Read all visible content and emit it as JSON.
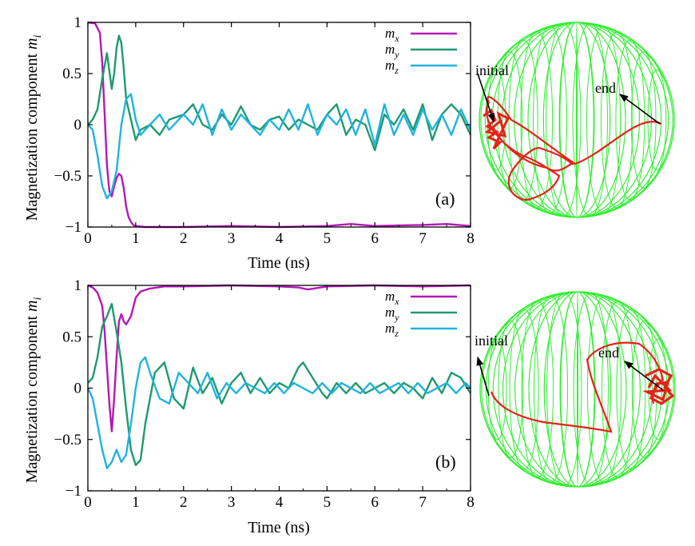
{
  "colors": {
    "mx": "#b417b8",
    "my": "#1e9a6e",
    "mz": "#1fb3e0",
    "sphere": "#33ee33",
    "trajectory": "#e8201a",
    "axis": "#000000"
  },
  "chart_data": [
    {
      "type": "line",
      "panel_label": "(a)",
      "xlabel": "Time (ns)",
      "ylabel": "Magnetization component m_i",
      "ylabel_main": "Magnetization component ",
      "ylabel_var": "m",
      "ylabel_sub": "i",
      "xlim": [
        0,
        8
      ],
      "ylim": [
        -1,
        1
      ],
      "xticks": [
        0,
        1,
        2,
        3,
        4,
        5,
        6,
        7,
        8
      ],
      "yticks": [
        {
          "value": 1,
          "label": "1"
        },
        {
          "value": 0.5,
          "label": "0.5"
        },
        {
          "value": 0,
          "label": "0"
        },
        {
          "value": -0.5,
          "label": "−0.5"
        },
        {
          "value": -1,
          "label": "−1"
        }
      ],
      "legend_position": "top-right",
      "series": [
        {
          "name": "m_x",
          "base": "m",
          "sub": "x",
          "color_key": "mx",
          "x": [
            0,
            0.15,
            0.25,
            0.3,
            0.35,
            0.4,
            0.45,
            0.5,
            0.55,
            0.6,
            0.65,
            0.7,
            0.75,
            0.8,
            0.85,
            0.9,
            0.95,
            1.0,
            1.2,
            2,
            3,
            4,
            5,
            5.5,
            6,
            7,
            7.5,
            8
          ],
          "y": [
            1.0,
            0.99,
            0.9,
            0.6,
            0.1,
            -0.4,
            -0.65,
            -0.7,
            -0.6,
            -0.52,
            -0.48,
            -0.5,
            -0.62,
            -0.8,
            -0.9,
            -0.95,
            -0.98,
            -0.99,
            -1.0,
            -1.0,
            -0.99,
            -1.0,
            -0.99,
            -0.97,
            -0.99,
            -0.98,
            -0.97,
            -0.99
          ]
        },
        {
          "name": "m_y",
          "base": "m",
          "sub": "y",
          "color_key": "my",
          "x": [
            0,
            0.1,
            0.2,
            0.3,
            0.4,
            0.5,
            0.55,
            0.6,
            0.65,
            0.7,
            0.75,
            0.8,
            0.9,
            1.0,
            1.1,
            1.3,
            1.5,
            1.7,
            2.0,
            2.2,
            2.4,
            2.6,
            2.8,
            3.0,
            3.2,
            3.4,
            3.6,
            3.8,
            4.0,
            4.2,
            4.4,
            4.6,
            4.8,
            5.0,
            5.2,
            5.4,
            5.6,
            5.8,
            6.0,
            6.2,
            6.4,
            6.6,
            6.8,
            7.0,
            7.2,
            7.4,
            7.6,
            7.8,
            8.0
          ],
          "y": [
            0.0,
            0.05,
            0.15,
            0.45,
            0.7,
            0.35,
            0.5,
            0.75,
            0.87,
            0.8,
            0.55,
            0.25,
            0.05,
            -0.15,
            -0.05,
            0.0,
            -0.1,
            0.05,
            0.1,
            0.2,
            0.0,
            -0.05,
            0.1,
            0.0,
            0.18,
            0.0,
            -0.05,
            0.05,
            0.08,
            -0.05,
            0.05,
            0.0,
            -0.05,
            0.1,
            0.2,
            -0.1,
            0.05,
            0.0,
            -0.25,
            0.1,
            0.0,
            0.15,
            -0.05,
            0.2,
            -0.15,
            0.1,
            0.2,
            0.1,
            -0.1
          ]
        },
        {
          "name": "m_z",
          "base": "m",
          "sub": "z",
          "color_key": "mz",
          "x": [
            0,
            0.1,
            0.2,
            0.3,
            0.4,
            0.5,
            0.6,
            0.7,
            0.8,
            0.9,
            1.0,
            1.1,
            1.3,
            1.5,
            1.7,
            2.0,
            2.2,
            2.4,
            2.6,
            2.8,
            3.0,
            3.2,
            3.4,
            3.6,
            3.8,
            4.0,
            4.2,
            4.4,
            4.6,
            4.8,
            5.0,
            5.2,
            5.4,
            5.6,
            5.8,
            6.0,
            6.2,
            6.4,
            6.6,
            6.8,
            7.0,
            7.2,
            7.4,
            7.6,
            7.8,
            8.0
          ],
          "y": [
            0.0,
            -0.05,
            -0.3,
            -0.6,
            -0.72,
            -0.65,
            -0.45,
            0.0,
            0.25,
            0.3,
            0.05,
            -0.1,
            0.0,
            0.1,
            -0.05,
            0.1,
            0.0,
            0.2,
            -0.1,
            0.15,
            -0.05,
            0.1,
            0.0,
            -0.1,
            0.05,
            -0.05,
            0.15,
            -0.05,
            0.2,
            -0.1,
            0.1,
            0.0,
            0.15,
            -0.1,
            0.15,
            -0.2,
            0.2,
            -0.1,
            0.1,
            -0.1,
            0.15,
            -0.05,
            0.1,
            -0.1,
            0.15,
            -0.05
          ]
        }
      ]
    },
    {
      "type": "line",
      "panel_label": "(b)",
      "xlabel": "Time (ns)",
      "ylabel": "Magnetization component m_i",
      "ylabel_main": "Magnetization component ",
      "ylabel_var": "m",
      "ylabel_sub": "i",
      "xlim": [
        0,
        8
      ],
      "ylim": [
        -1,
        1
      ],
      "xticks": [
        0,
        1,
        2,
        3,
        4,
        5,
        6,
        7,
        8
      ],
      "yticks": [
        {
          "value": 1,
          "label": "1"
        },
        {
          "value": 0.5,
          "label": "0.5"
        },
        {
          "value": 0,
          "label": "0"
        },
        {
          "value": -0.5,
          "label": "−0.5"
        },
        {
          "value": -1,
          "label": "−1"
        }
      ],
      "legend_position": "top-right",
      "series": [
        {
          "name": "m_x",
          "base": "m",
          "sub": "x",
          "color_key": "mx",
          "x": [
            0,
            0.1,
            0.2,
            0.3,
            0.35,
            0.4,
            0.45,
            0.5,
            0.55,
            0.6,
            0.65,
            0.7,
            0.75,
            0.8,
            0.9,
            1.0,
            1.1,
            1.3,
            1.6,
            2,
            3,
            4,
            4.4,
            4.6,
            5,
            6,
            7,
            8
          ],
          "y": [
            1.0,
            0.98,
            0.93,
            0.8,
            0.55,
            0.2,
            -0.15,
            -0.42,
            -0.1,
            0.3,
            0.65,
            0.72,
            0.65,
            0.62,
            0.7,
            0.88,
            0.94,
            0.97,
            0.99,
            0.99,
            1.0,
            0.99,
            0.98,
            0.96,
            0.99,
            1.0,
            0.99,
            1.0
          ]
        },
        {
          "name": "m_y",
          "base": "m",
          "sub": "y",
          "color_key": "my",
          "x": [
            0,
            0.1,
            0.2,
            0.3,
            0.4,
            0.5,
            0.6,
            0.7,
            0.8,
            0.9,
            1.0,
            1.1,
            1.2,
            1.4,
            1.6,
            1.8,
            2.0,
            2.2,
            2.4,
            2.6,
            2.8,
            3.0,
            3.2,
            3.4,
            3.6,
            3.8,
            4.0,
            4.2,
            4.4,
            4.5,
            4.7,
            4.9,
            5.0,
            5.2,
            5.4,
            5.6,
            5.8,
            6.0,
            6.2,
            6.4,
            6.6,
            6.8,
            7.0,
            7.2,
            7.4,
            7.6,
            7.8,
            8.0
          ],
          "y": [
            0.05,
            0.1,
            0.3,
            0.6,
            0.7,
            0.82,
            0.55,
            0.25,
            -0.2,
            -0.6,
            -0.75,
            -0.7,
            -0.35,
            0.15,
            0.25,
            -0.1,
            -0.2,
            0.2,
            -0.05,
            0.1,
            -0.15,
            0.05,
            0.15,
            -0.05,
            0.1,
            -0.05,
            0.05,
            0.0,
            0.2,
            0.25,
            0.1,
            -0.05,
            -0.1,
            0.05,
            -0.05,
            0.05,
            -0.05,
            0.0,
            0.05,
            -0.05,
            0.05,
            0.0,
            -0.1,
            0.1,
            -0.05,
            0.15,
            0.1,
            -0.05
          ]
        },
        {
          "name": "m_z",
          "base": "m",
          "sub": "z",
          "color_key": "mz",
          "x": [
            0,
            0.1,
            0.2,
            0.3,
            0.4,
            0.5,
            0.6,
            0.7,
            0.8,
            0.9,
            1.0,
            1.1,
            1.2,
            1.3,
            1.5,
            1.7,
            1.9,
            2.1,
            2.3,
            2.5,
            2.7,
            2.9,
            3.1,
            3.3,
            3.5,
            3.7,
            3.9,
            4.1,
            4.3,
            4.5,
            4.7,
            4.9,
            5.1,
            5.3,
            5.5,
            5.7,
            5.9,
            6.1,
            6.3,
            6.5,
            6.7,
            6.9,
            7.1,
            7.3,
            7.5,
            7.7,
            7.9,
            8.0
          ],
          "y": [
            0.0,
            -0.1,
            -0.35,
            -0.6,
            -0.78,
            -0.72,
            -0.6,
            -0.72,
            -0.65,
            -0.35,
            0.0,
            0.25,
            0.3,
            0.15,
            -0.1,
            -0.15,
            0.15,
            0.05,
            -0.05,
            0.15,
            -0.1,
            0.05,
            -0.05,
            0.05,
            0.0,
            -0.05,
            0.05,
            -0.05,
            0.05,
            0.0,
            -0.05,
            0.05,
            -0.05,
            0.05,
            0.0,
            -0.05,
            0.05,
            -0.05,
            0.0,
            0.05,
            -0.05,
            0.05,
            -0.05,
            0.0,
            0.05,
            -0.05,
            0.05,
            0.0
          ]
        }
      ]
    }
  ],
  "spheres": [
    {
      "initial_label": "initial",
      "end_label": "end"
    },
    {
      "initial_label": "initial",
      "end_label": "end"
    }
  ]
}
